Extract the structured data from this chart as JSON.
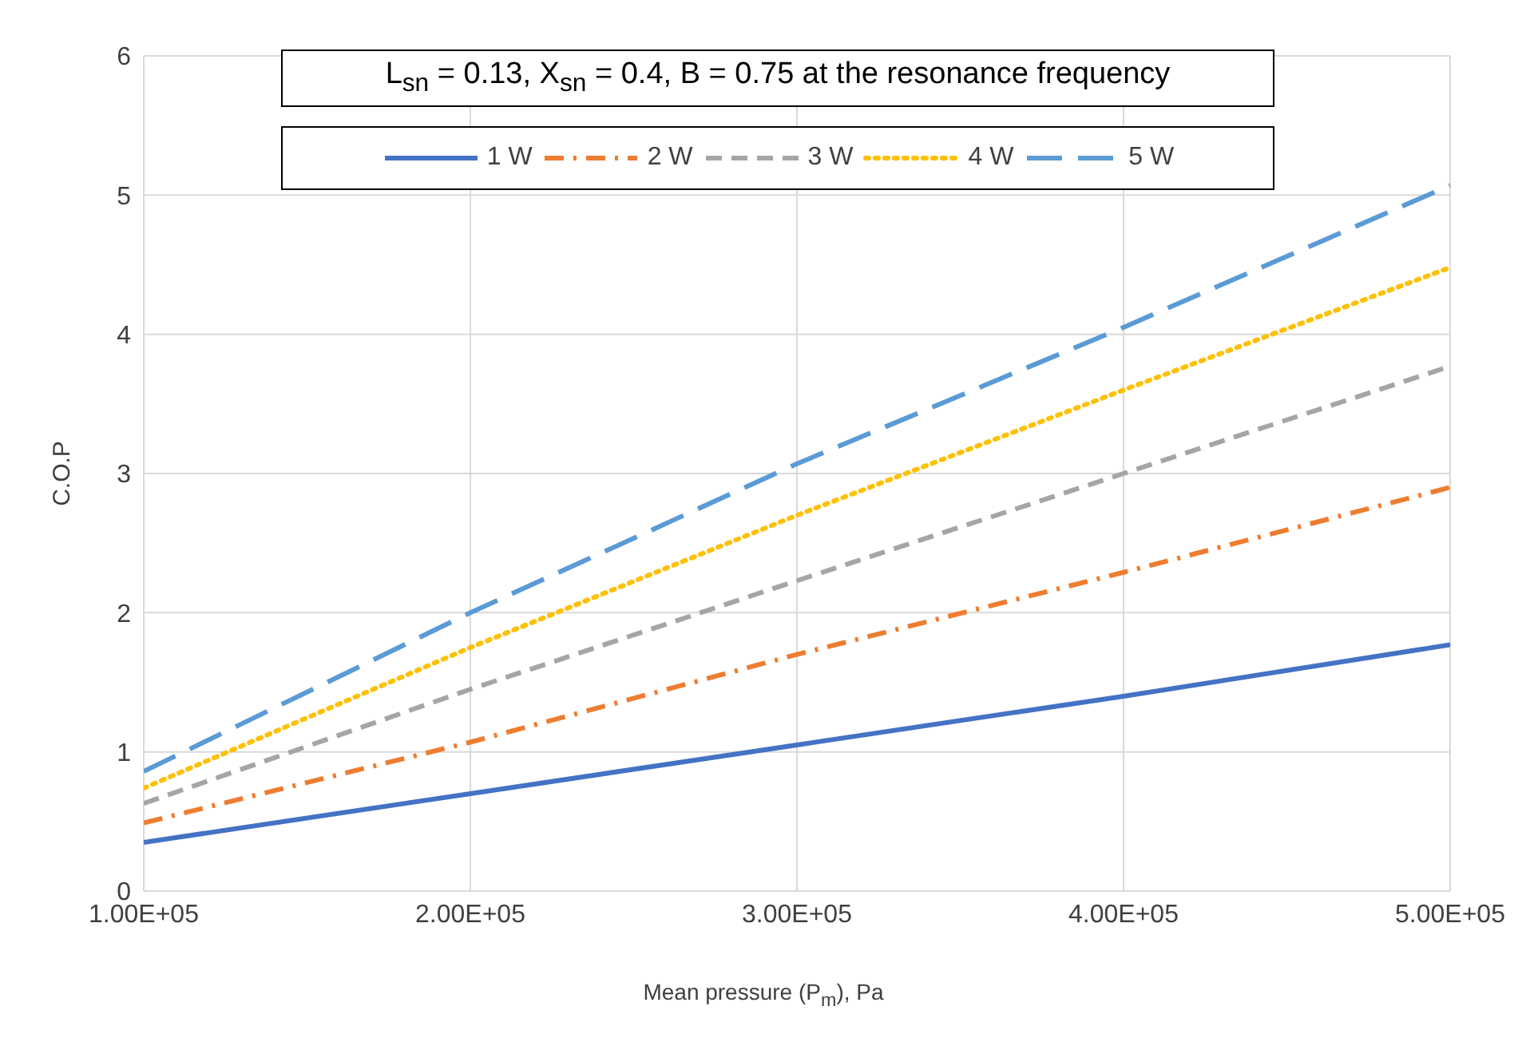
{
  "chart_data": {
    "type": "line",
    "annotations": [
      "L$_{sn}$ = 0.13, X$_{sn}$ = 0.4, B = 0.75 at the resonance frequency"
    ],
    "xlabel": "Mean pressure (P$_{m}$),  Pa",
    "ylabel": "C.O.P",
    "x": [
      100000,
      200000,
      300000,
      400000,
      500000
    ],
    "xlim": [
      100000,
      500000
    ],
    "xticks": [
      {
        "value": 100000,
        "label": "1.00E+05"
      },
      {
        "value": 200000,
        "label": "2.00E+05"
      },
      {
        "value": 300000,
        "label": "3.00E+05"
      },
      {
        "value": 400000,
        "label": "4.00E+05"
      },
      {
        "value": 500000,
        "label": "5.00E+05"
      }
    ],
    "ylim": [
      0,
      6
    ],
    "yticks": [
      0,
      1,
      2,
      3,
      4,
      5,
      6
    ],
    "grid": true,
    "legend": "top",
    "marker": "none",
    "series": [
      {
        "name": "1 W",
        "color": "#4472c4",
        "line_style": "solid",
        "values": [
          0.35,
          0.7,
          1.05,
          1.4,
          1.77
        ]
      },
      {
        "name": "2 W",
        "color": "#ed7d31",
        "line_style": "dashdot",
        "values": [
          0.49,
          1.07,
          1.7,
          2.29,
          2.9
        ]
      },
      {
        "name": "3 W",
        "color": "#a5a5a5",
        "line_style": "dashed",
        "values": [
          0.63,
          1.45,
          2.23,
          3.0,
          3.77
        ]
      },
      {
        "name": "4 W",
        "color": "#ffc000",
        "line_style": "dotted",
        "values": [
          0.74,
          1.75,
          2.7,
          3.6,
          4.48
        ]
      },
      {
        "name": "5 W",
        "color": "#5b9bd5",
        "line_style": "longdash",
        "values": [
          0.86,
          2.0,
          3.07,
          4.05,
          5.07
        ]
      }
    ]
  }
}
